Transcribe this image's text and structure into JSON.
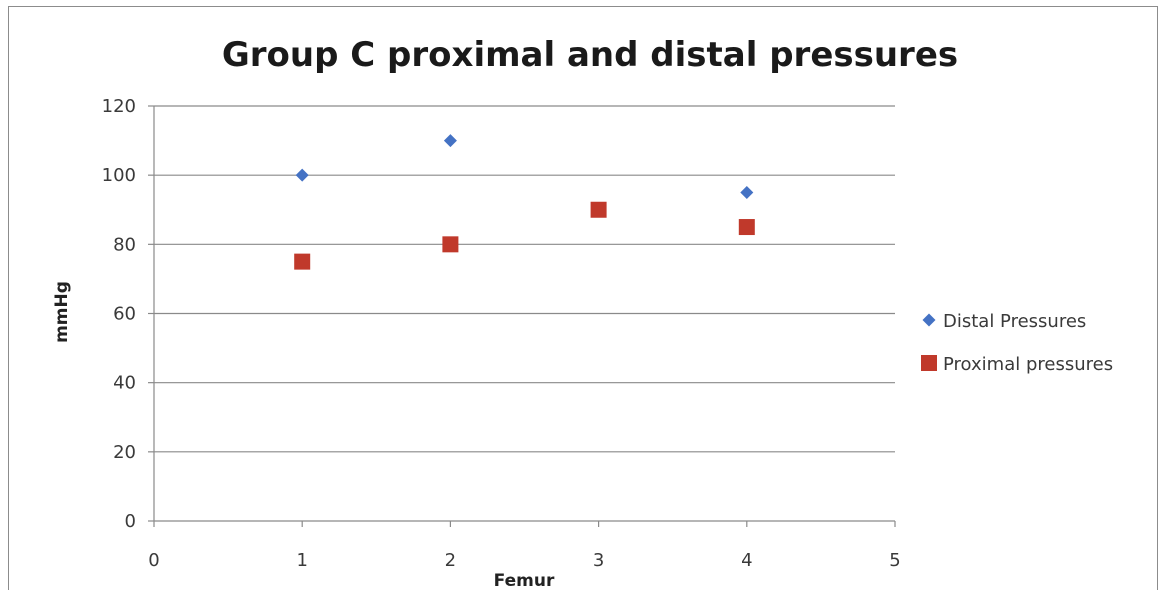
{
  "chart_data": {
    "type": "scatter",
    "title": "Group C proximal and distal pressures",
    "xlabel": "Femur",
    "ylabel": "mmHg",
    "xlim": [
      0,
      5
    ],
    "ylim": [
      0,
      120
    ],
    "x_ticks": [
      "0",
      "1",
      "2",
      "3",
      "4",
      "5"
    ],
    "y_ticks": [
      "0",
      "20",
      "40",
      "60",
      "80",
      "100",
      "120"
    ],
    "grid": "horizontal",
    "legend_position": "right",
    "series": [
      {
        "name": "Distal Pressures",
        "marker": "diamond",
        "color": "#4472c4",
        "points": [
          {
            "x": 1,
            "y": 100
          },
          {
            "x": 2,
            "y": 110
          },
          {
            "x": 4,
            "y": 95
          }
        ]
      },
      {
        "name": "Proximal pressures",
        "marker": "square",
        "color": "#c0392b",
        "points": [
          {
            "x": 1,
            "y": 75
          },
          {
            "x": 2,
            "y": 80
          },
          {
            "x": 3,
            "y": 90
          },
          {
            "x": 4,
            "y": 85
          }
        ]
      }
    ]
  }
}
